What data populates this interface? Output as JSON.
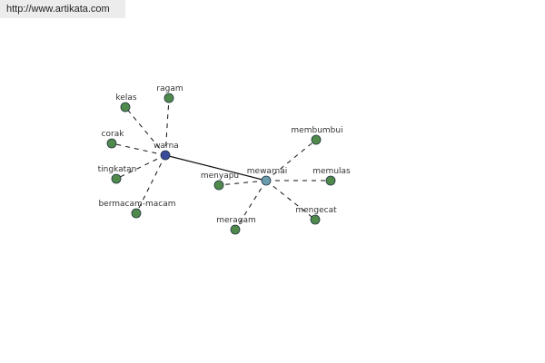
{
  "header": {
    "url": "http://www.artikata.com"
  },
  "nodes": [
    {
      "label": "warna"
    },
    {
      "label": "mewarnai"
    },
    {
      "label": "kelas"
    },
    {
      "label": "ragam"
    },
    {
      "label": "corak"
    },
    {
      "label": "tingkatan"
    },
    {
      "label": "bermacam-macam"
    },
    {
      "label": "membumbui"
    },
    {
      "label": "memulas"
    },
    {
      "label": "menyapu"
    },
    {
      "label": "meragam"
    },
    {
      "label": "mengecat"
    }
  ]
}
